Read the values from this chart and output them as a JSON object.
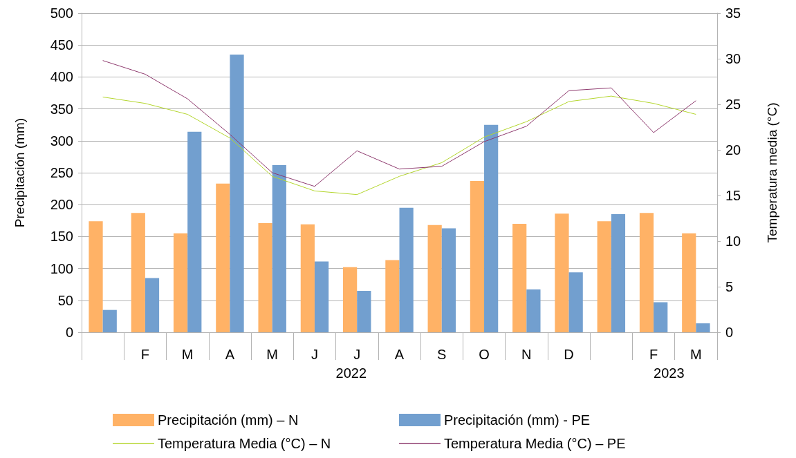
{
  "chart_data": {
    "type": "bar",
    "ylabel": "Precipitación (mm)",
    "y2label": "Temperatura media (°C)",
    "categories": [
      null,
      "F",
      "M",
      "A",
      "M",
      "J",
      "J",
      "A",
      "S",
      "O",
      "N",
      "D",
      null,
      "F",
      "M"
    ],
    "series": [
      {
        "name": "Precipitación (mm) – N",
        "color": "#ffb266",
        "values": [
          174,
          187,
          155,
          233,
          171,
          169,
          102,
          113,
          168,
          237,
          170,
          186,
          174,
          187,
          155
        ]
      },
      {
        "name": "Precipitación (mm) - PE",
        "color": "#729fcf",
        "values": [
          35,
          85,
          314,
          435,
          262,
          111,
          65,
          195,
          163,
          325,
          67,
          94,
          185,
          47,
          14
        ]
      },
      {
        "name": "Temperatura Media (°C) – N",
        "type": "line",
        "axis": "y2",
        "color": "#b4d62e",
        "values": [
          25.8,
          25.1,
          23.9,
          21.3,
          17.1,
          15.5,
          15.1,
          17.1,
          18.6,
          21.4,
          23.1,
          25.3,
          25.9,
          25.1,
          23.9
        ]
      },
      {
        "name": "Temperatura Media (°C) – PE",
        "type": "line",
        "axis": "y2",
        "color": "#8e3a6e",
        "values": [
          29.8,
          28.3,
          25.6,
          21.7,
          17.5,
          16.0,
          19.9,
          17.9,
          18.2,
          20.9,
          22.6,
          26.5,
          26.8,
          21.9,
          25.4
        ]
      }
    ],
    "annotations": [
      "2022",
      "2023"
    ],
    "ylim": [
      0,
      500
    ],
    "yticks": [
      0,
      50,
      100,
      150,
      200,
      250,
      300,
      350,
      400,
      450,
      500
    ],
    "y2lim": [
      0,
      35
    ],
    "y2ticks": [
      0,
      5,
      10,
      15,
      20,
      25,
      30,
      35
    ],
    "grid": "y",
    "legend": "bottom",
    "marker": "none",
    "line_style": "solid"
  }
}
